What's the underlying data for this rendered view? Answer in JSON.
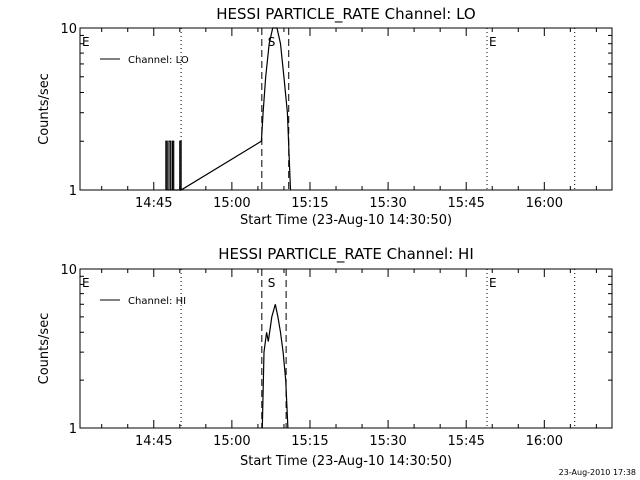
{
  "footer": {
    "timestamp": "23-Aug-2010 17:38"
  },
  "chart_data": [
    {
      "type": "line",
      "title": "HESSI PARTICLE_RATE Channel: LO",
      "xlabel": "Start Time (23-Aug-10 14:30:50)",
      "ylabel": "Counts/sec",
      "yscale": "log",
      "ylim": [
        1,
        10
      ],
      "xlim": [
        "14:30:50",
        "16:13:00"
      ],
      "xticks": [
        "14:45",
        "15:00",
        "15:15",
        "15:30",
        "15:45",
        "16:00"
      ],
      "yticks": [
        "1",
        "10"
      ],
      "legend": {
        "position": "top-left",
        "entries": [
          "Channel: LO"
        ]
      },
      "series": [
        {
          "name": "Channel: LO",
          "points": [
            [
              "14:47:20",
              1
            ],
            [
              "14:47:20",
              2
            ],
            [
              "14:47:35",
              2
            ],
            [
              "14:47:35",
              1
            ],
            [
              "14:47:55",
              1
            ],
            [
              "14:47:55",
              2
            ],
            [
              "14:48:15",
              2
            ],
            [
              "14:48:15",
              1
            ],
            [
              "14:48:35",
              1
            ],
            [
              "14:48:35",
              2
            ],
            [
              "14:48:50",
              2
            ],
            [
              "14:48:50",
              1
            ],
            [
              "14:50:00",
              1
            ],
            [
              "14:50:00",
              2
            ],
            [
              "14:50:15",
              2
            ],
            [
              "14:50:15",
              1
            ],
            [
              "15:05:40",
              2
            ],
            [
              "15:06:00",
              3
            ],
            [
              "15:06:30",
              5
            ],
            [
              "15:07:10",
              8
            ],
            [
              "15:07:50",
              10
            ],
            [
              "15:08:40",
              10
            ],
            [
              "15:09:20",
              8
            ],
            [
              "15:10:00",
              5
            ],
            [
              "15:10:40",
              3
            ],
            [
              "15:11:15",
              1
            ]
          ]
        }
      ],
      "markers": [
        {
          "label": "E",
          "time": "14:30:50",
          "style": "dotted"
        },
        {
          "label": "",
          "time": "14:50:15",
          "style": "dotted"
        },
        {
          "label": "",
          "time": "15:05:45",
          "style": "dashed"
        },
        {
          "label": "S",
          "time": "15:06:30",
          "style": "none"
        },
        {
          "label": "",
          "time": "15:10:55",
          "style": "dashed"
        },
        {
          "label": "E",
          "time": "15:49:00",
          "style": "dotted"
        },
        {
          "label": "",
          "time": "16:05:50",
          "style": "dotted"
        }
      ]
    },
    {
      "type": "line",
      "title": "HESSI PARTICLE_RATE Channel: HI",
      "xlabel": "Start Time (23-Aug-10 14:30:50)",
      "ylabel": "Counts/sec",
      "yscale": "log",
      "ylim": [
        1,
        10
      ],
      "xlim": [
        "14:30:50",
        "16:13:00"
      ],
      "xticks": [
        "14:45",
        "15:00",
        "15:15",
        "15:30",
        "15:45",
        "16:00"
      ],
      "yticks": [
        "1",
        "10"
      ],
      "legend": {
        "position": "top-left",
        "entries": [
          "Channel: HI"
        ]
      },
      "series": [
        {
          "name": "Channel: HI",
          "points": [
            [
              "15:05:50",
              1
            ],
            [
              "15:06:10",
              3
            ],
            [
              "15:06:40",
              4
            ],
            [
              "15:07:00",
              3.5
            ],
            [
              "15:07:40",
              5
            ],
            [
              "15:08:20",
              6
            ],
            [
              "15:08:50",
              5
            ],
            [
              "15:09:20",
              4
            ],
            [
              "15:09:50",
              3
            ],
            [
              "15:10:20",
              2
            ],
            [
              "15:10:45",
              1
            ]
          ]
        }
      ],
      "markers": [
        {
          "label": "E",
          "time": "14:30:50",
          "style": "dotted"
        },
        {
          "label": "",
          "time": "14:50:15",
          "style": "dotted"
        },
        {
          "label": "",
          "time": "15:05:45",
          "style": "dashed"
        },
        {
          "label": "S",
          "time": "15:06:30",
          "style": "none"
        },
        {
          "label": "",
          "time": "15:10:25",
          "style": "dashed"
        },
        {
          "label": "E",
          "time": "15:49:00",
          "style": "dotted"
        },
        {
          "label": "",
          "time": "16:05:50",
          "style": "dotted"
        }
      ]
    }
  ]
}
